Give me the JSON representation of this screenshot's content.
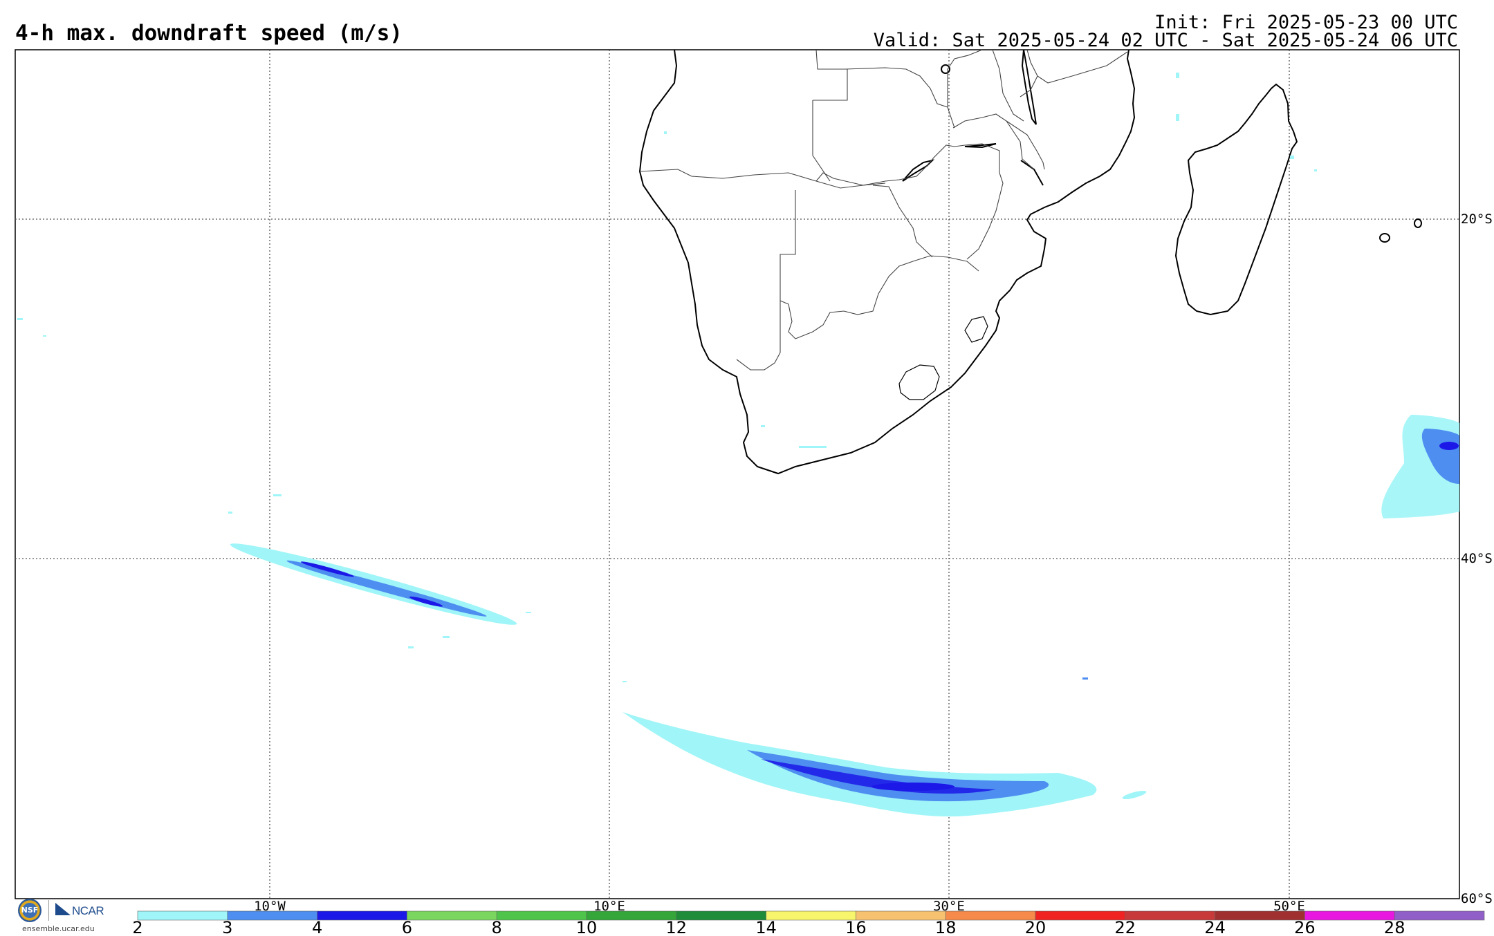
{
  "header": {
    "title": "4-h max. downdraft speed (m/s)",
    "init": "Init: Fri 2025-05-23 00 UTC",
    "valid": "Valid: Sat 2025-05-24 02 UTC - Sat 2025-05-24 06 UTC"
  },
  "map": {
    "lon_labels": [
      "10°W",
      "10°E",
      "30°E",
      "50°E"
    ],
    "lat_labels": [
      "20°S",
      "40°S",
      "60°S"
    ],
    "gridlines": "dotted",
    "region": "Southern Africa and South Atlantic / SW Indian Ocean"
  },
  "colorbar": {
    "ticks": [
      "2",
      "3",
      "4",
      "6",
      "8",
      "10",
      "12",
      "14",
      "16",
      "18",
      "20",
      "22",
      "24",
      "26",
      "28"
    ],
    "colors": [
      "#9ff5f7",
      "#4d8ef0",
      "#1c18e8",
      "#7ad65e",
      "#4fc44a",
      "#34a63a",
      "#1f8c3a",
      "#f7f56b",
      "#f7c270",
      "#f58a4a",
      "#f02222",
      "#c83a3a",
      "#a03030",
      "#e818e0",
      "#9060c8"
    ]
  },
  "footer": {
    "credit": "ensemble.ucar.edu",
    "nsf_logo": "NSF",
    "ncar_logo": "NCAR"
  }
}
